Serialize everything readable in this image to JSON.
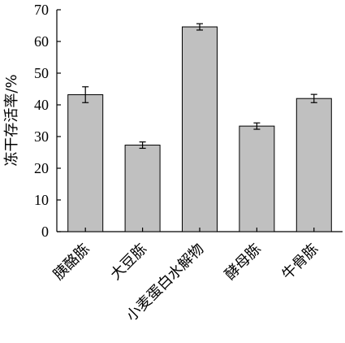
{
  "chart_data": {
    "type": "bar",
    "categories": [
      "胰酪胨",
      "大豆胨",
      "小麦蛋白水解物",
      "酵母胨",
      "牛骨胨"
    ],
    "values": [
      43.2,
      27.3,
      64.6,
      33.3,
      42.0
    ],
    "errors": [
      2.5,
      1.0,
      1.0,
      1.0,
      1.3
    ],
    "title": "",
    "xlabel": "",
    "ylabel": "冻干存活率/%",
    "ylim": [
      0,
      70
    ],
    "yticks": [
      0,
      10,
      20,
      30,
      40,
      50,
      60,
      70
    ],
    "grid": false,
    "legend": "none",
    "bar_color": "#c0c0c0",
    "edge_color": "#000000"
  }
}
